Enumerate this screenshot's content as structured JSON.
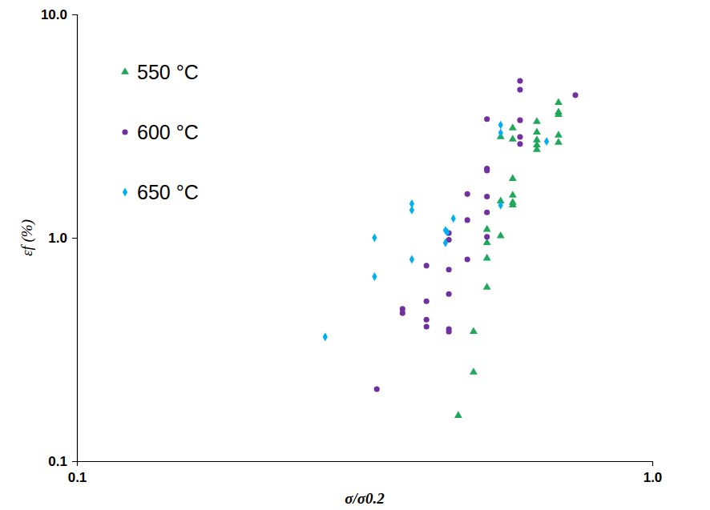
{
  "chart_data": {
    "type": "scatter",
    "xlabel": "σ/σ0.2",
    "ylabel": "εf (%)",
    "log": true,
    "grid": false,
    "legend": "upper left",
    "xlim": [
      0.1,
      1
    ],
    "ylim": [
      0.1,
      10
    ],
    "xticks": [
      0.1,
      {
        "value": 1,
        "label": "1.0"
      }
    ],
    "yticks": [
      0.1,
      {
        "value": 1,
        "label": "1.0"
      },
      {
        "value": 10,
        "label": "10.0"
      }
    ],
    "series": [
      {
        "name": "550 °C",
        "color": "#1fa85a",
        "marker": "triangle",
        "x": [
          0.687,
          0.687,
          0.687,
          0.687,
          0.687,
          0.63,
          0.63,
          0.63,
          0.63,
          0.63,
          0.572,
          0.572,
          0.572,
          0.572,
          0.572,
          0.572,
          0.545,
          0.545,
          0.545,
          0.516,
          0.516,
          0.516,
          0.516,
          0.489,
          0.489,
          0.46
        ],
        "values": [
          4.03,
          3.65,
          3.56,
          2.88,
          2.67,
          3.31,
          2.97,
          2.74,
          2.6,
          2.48,
          3.1,
          2.76,
          1.84,
          1.55,
          1.44,
          1.4,
          2.83,
          1.46,
          1.02,
          1.09,
          0.95,
          0.81,
          0.6,
          0.38,
          0.25,
          0.16
        ]
      },
      {
        "name": "600 °C",
        "color": "#7030a0",
        "marker": "circle",
        "x": [
          0.589,
          0.589,
          0.589,
          0.589,
          0.589,
          0.516,
          0.516,
          0.516,
          0.516,
          0.516,
          0.516,
          0.477,
          0.477,
          0.477,
          0.443,
          0.443,
          0.443,
          0.443,
          0.443,
          0.443,
          0.405,
          0.405,
          0.405,
          0.405,
          0.368,
          0.368,
          0.332,
          0.735
        ],
        "values": [
          5.04,
          4.6,
          3.36,
          2.83,
          2.63,
          3.4,
          2.04,
          2.0,
          1.53,
          1.3,
          1.01,
          1.57,
          1.2,
          0.8,
          1.05,
          0.98,
          0.72,
          0.56,
          0.39,
          0.38,
          0.75,
          0.52,
          0.43,
          0.4,
          0.48,
          0.46,
          0.21,
          4.35
        ]
      },
      {
        "name": "650 °C",
        "color": "#00b0f0",
        "marker": "diamond",
        "x": [
          0.27,
          0.329,
          0.329,
          0.382,
          0.382,
          0.382,
          0.437,
          0.437,
          0.44,
          0.451,
          0.545,
          0.545,
          0.545,
          0.655
        ],
        "values": [
          0.36,
          1.0,
          0.67,
          1.42,
          1.33,
          0.8,
          1.08,
          0.95,
          1.06,
          1.22,
          3.2,
          2.95,
          1.4,
          2.7
        ]
      }
    ]
  }
}
